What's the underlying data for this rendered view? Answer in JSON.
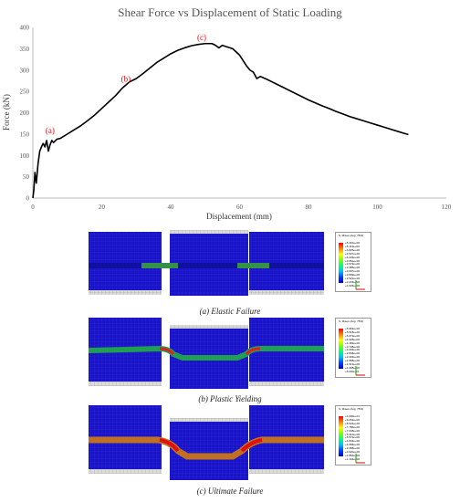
{
  "chart_data": {
    "type": "line",
    "title": "Shear Force vs Displacement of Static Loading",
    "xlabel": "Displacement (mm)",
    "ylabel": "Force (kN)",
    "xlim": [
      0,
      120
    ],
    "ylim": [
      0,
      400
    ],
    "x_ticks": [
      "0",
      "20",
      "40",
      "60",
      "80",
      "100",
      "120"
    ],
    "y_ticks": [
      "0",
      "50",
      "100",
      "150",
      "200",
      "250",
      "300",
      "350",
      "400"
    ],
    "grid": false,
    "series": [
      {
        "color": "#000000",
        "x": [
          0,
          0.3,
          0.6,
          1.0,
          1.5,
          2,
          2.5,
          3,
          3.5,
          4,
          4.5,
          5,
          5.5,
          6,
          7,
          8,
          10,
          12,
          14,
          16,
          18,
          20,
          22,
          24,
          26,
          28,
          30,
          32,
          34,
          36,
          38,
          40,
          42,
          44,
          46,
          48,
          50,
          52,
          53,
          54,
          55,
          56,
          58,
          60,
          62,
          63,
          64,
          65,
          66,
          68,
          70,
          72,
          74,
          76,
          78,
          80,
          82,
          84,
          86,
          88,
          90,
          92,
          94,
          96,
          98,
          100,
          102,
          104,
          106,
          108,
          109
        ],
        "y": [
          0,
          20,
          60,
          35,
          80,
          110,
          120,
          128,
          120,
          135,
          110,
          125,
          135,
          130,
          138,
          140,
          150,
          160,
          170,
          182,
          195,
          210,
          225,
          240,
          258,
          272,
          280,
          292,
          305,
          318,
          328,
          338,
          346,
          352,
          357,
          360,
          362,
          362,
          358,
          352,
          358,
          355,
          350,
          335,
          310,
          300,
          295,
          280,
          285,
          278,
          270,
          262,
          254,
          246,
          238,
          230,
          223,
          216,
          210,
          203,
          197,
          191,
          186,
          181,
          176,
          171,
          166,
          161,
          156,
          151,
          149
        ]
      }
    ],
    "annotations": [
      {
        "text": "(a)",
        "x": 5,
        "y": 152,
        "color": "#ff0000"
      },
      {
        "text": "(b)",
        "x": 27,
        "y": 273,
        "color": "#ff0000"
      },
      {
        "text": "(c)",
        "x": 49,
        "y": 370,
        "color": "#ff0000"
      }
    ]
  },
  "panels": [
    {
      "caption": "(a)  Elastic Failure",
      "legend_title": "S, Mises\n(Avg: 75%)",
      "legend_values": [
        "+5.401e+00",
        "+5.113e+00",
        "+4.825e+00",
        "+4.537e+00",
        "+4.249e+00",
        "+3.961e+00",
        "+3.673e+00",
        "+3.385e+00",
        "+3.097e+00",
        "+2.809e+00",
        "+2.521e+00",
        "+2.233e+00",
        "+1.945e+00"
      ]
    },
    {
      "caption": "(b)  Plastic Yielding",
      "legend_title": "S, Mises\n(Avg: 75%)",
      "legend_values": [
        "+5.963e+00",
        "+5.518e+00",
        "+5.073e+00",
        "+4.628e+00",
        "+4.183e+00",
        "+3.738e+00",
        "+3.293e+00",
        "+2.848e+00",
        "+2.403e+00",
        "+1.958e+00",
        "+1.513e+00",
        "+1.068e+00",
        "+6.230e-01"
      ]
    },
    {
      "caption": "(c)  Ultimate Failure",
      "legend_title": "S, Mises\n(Avg: 75%)",
      "legend_values": [
        "+1.000e+01",
        "+9.262e+00",
        "+8.524e+00",
        "+7.786e+00",
        "+7.048e+00",
        "+6.310e+00",
        "+5.572e+00",
        "+4.834e+00",
        "+4.096e+00",
        "+3.358e+00",
        "+2.620e+00",
        "+1.882e+00",
        "+1.144e+00"
      ]
    }
  ]
}
